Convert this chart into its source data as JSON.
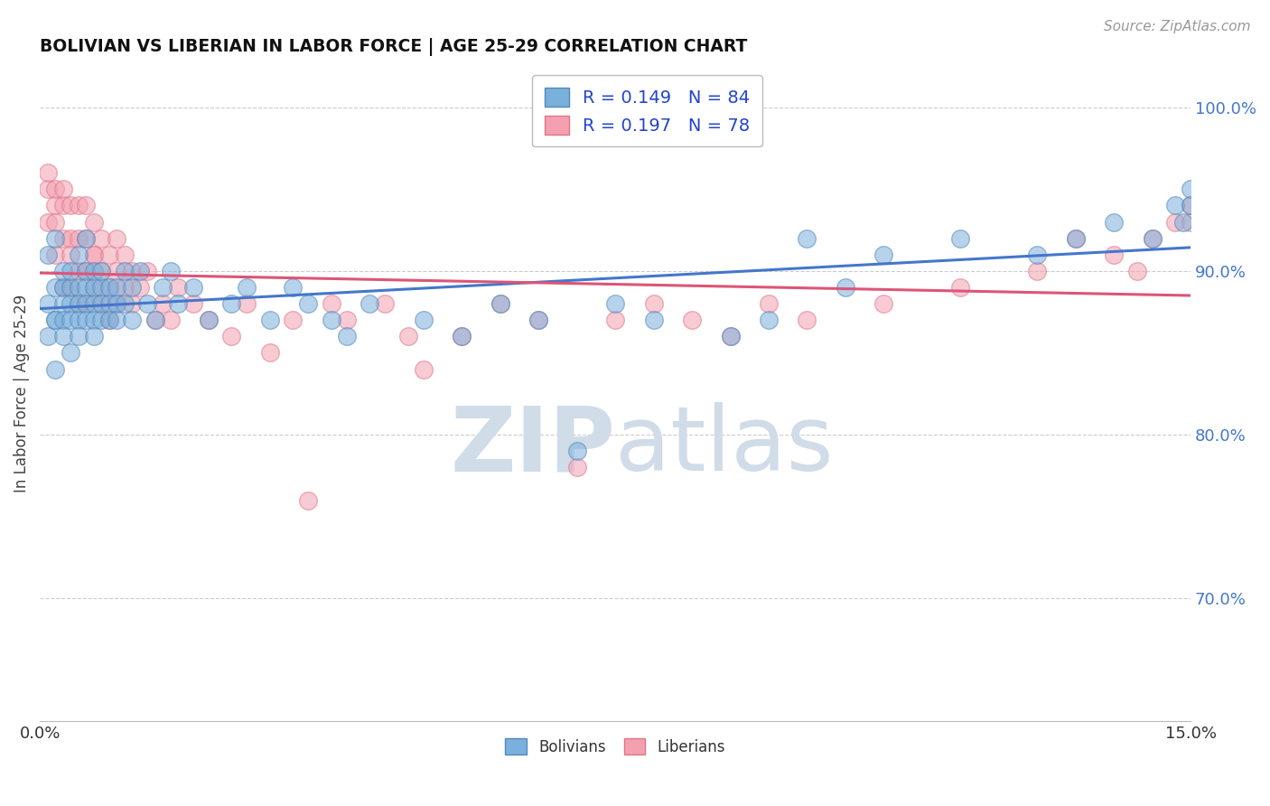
{
  "title": "BOLIVIAN VS LIBERIAN IN LABOR FORCE | AGE 25-29 CORRELATION CHART",
  "source_text": "Source: ZipAtlas.com",
  "ylabel_left": "In Labor Force | Age 25-29",
  "x_min": 0.0,
  "x_max": 0.15,
  "y_min": 0.625,
  "y_max": 1.025,
  "x_tick_labels": [
    "0.0%",
    "15.0%"
  ],
  "y_ticks_right": [
    0.7,
    0.8,
    0.9,
    1.0
  ],
  "y_tick_labels_right": [
    "70.0%",
    "80.0%",
    "90.0%",
    "100.0%"
  ],
  "bolivian_color": "#7ab0dc",
  "liberian_color": "#f4a0b0",
  "bolivian_edge": "#5588bb",
  "liberian_edge": "#dd7788",
  "trend_blue": "#4477cc",
  "trend_pink": "#dd5577",
  "R_bolivian": 0.149,
  "N_bolivian": 84,
  "R_liberian": 0.197,
  "N_liberian": 78,
  "legend_label_bolivian": "Bolivians",
  "legend_label_liberian": "Liberians",
  "background_color": "#ffffff",
  "watermark_color": "#d0dce8",
  "grid_color": "#cccccc",
  "bolivian_x": [
    0.001,
    0.001,
    0.001,
    0.002,
    0.002,
    0.002,
    0.002,
    0.002,
    0.003,
    0.003,
    0.003,
    0.003,
    0.003,
    0.004,
    0.004,
    0.004,
    0.004,
    0.004,
    0.005,
    0.005,
    0.005,
    0.005,
    0.005,
    0.006,
    0.006,
    0.006,
    0.006,
    0.006,
    0.007,
    0.007,
    0.007,
    0.007,
    0.007,
    0.008,
    0.008,
    0.008,
    0.008,
    0.009,
    0.009,
    0.009,
    0.01,
    0.01,
    0.01,
    0.011,
    0.011,
    0.012,
    0.012,
    0.013,
    0.014,
    0.015,
    0.016,
    0.017,
    0.018,
    0.02,
    0.022,
    0.025,
    0.027,
    0.03,
    0.033,
    0.035,
    0.038,
    0.04,
    0.043,
    0.05,
    0.055,
    0.06,
    0.065,
    0.07,
    0.075,
    0.08,
    0.09,
    0.095,
    0.1,
    0.105,
    0.11,
    0.12,
    0.13,
    0.135,
    0.14,
    0.145,
    0.148,
    0.149,
    0.15,
    0.15
  ],
  "bolivian_y": [
    0.88,
    0.86,
    0.91,
    0.87,
    0.89,
    0.84,
    0.92,
    0.87,
    0.89,
    0.88,
    0.87,
    0.9,
    0.86,
    0.89,
    0.88,
    0.87,
    0.9,
    0.85,
    0.89,
    0.88,
    0.87,
    0.86,
    0.91,
    0.9,
    0.89,
    0.88,
    0.87,
    0.92,
    0.89,
    0.88,
    0.87,
    0.86,
    0.9,
    0.89,
    0.88,
    0.87,
    0.9,
    0.89,
    0.88,
    0.87,
    0.89,
    0.88,
    0.87,
    0.9,
    0.88,
    0.89,
    0.87,
    0.9,
    0.88,
    0.87,
    0.89,
    0.9,
    0.88,
    0.89,
    0.87,
    0.88,
    0.89,
    0.87,
    0.89,
    0.88,
    0.87,
    0.86,
    0.88,
    0.87,
    0.86,
    0.88,
    0.87,
    0.79,
    0.88,
    0.87,
    0.86,
    0.87,
    0.92,
    0.89,
    0.91,
    0.92,
    0.91,
    0.92,
    0.93,
    0.92,
    0.94,
    0.93,
    0.94,
    0.95
  ],
  "liberian_x": [
    0.001,
    0.001,
    0.001,
    0.002,
    0.002,
    0.002,
    0.002,
    0.003,
    0.003,
    0.003,
    0.003,
    0.004,
    0.004,
    0.004,
    0.004,
    0.005,
    0.005,
    0.005,
    0.005,
    0.006,
    0.006,
    0.006,
    0.006,
    0.007,
    0.007,
    0.007,
    0.007,
    0.008,
    0.008,
    0.008,
    0.009,
    0.009,
    0.009,
    0.01,
    0.01,
    0.01,
    0.011,
    0.011,
    0.012,
    0.012,
    0.013,
    0.014,
    0.015,
    0.016,
    0.017,
    0.018,
    0.02,
    0.022,
    0.025,
    0.027,
    0.03,
    0.033,
    0.035,
    0.038,
    0.04,
    0.045,
    0.048,
    0.05,
    0.055,
    0.06,
    0.065,
    0.07,
    0.075,
    0.08,
    0.085,
    0.09,
    0.095,
    0.1,
    0.11,
    0.12,
    0.13,
    0.135,
    0.14,
    0.143,
    0.145,
    0.148,
    0.15,
    0.15
  ],
  "liberian_y": [
    0.95,
    0.93,
    0.96,
    0.94,
    0.91,
    0.95,
    0.93,
    0.94,
    0.92,
    0.95,
    0.89,
    0.94,
    0.92,
    0.91,
    0.89,
    0.94,
    0.92,
    0.9,
    0.88,
    0.94,
    0.92,
    0.9,
    0.88,
    0.93,
    0.91,
    0.89,
    0.91,
    0.92,
    0.9,
    0.88,
    0.91,
    0.89,
    0.87,
    0.92,
    0.9,
    0.88,
    0.91,
    0.89,
    0.9,
    0.88,
    0.89,
    0.9,
    0.87,
    0.88,
    0.87,
    0.89,
    0.88,
    0.87,
    0.86,
    0.88,
    0.85,
    0.87,
    0.76,
    0.88,
    0.87,
    0.88,
    0.86,
    0.84,
    0.86,
    0.88,
    0.87,
    0.78,
    0.87,
    0.88,
    0.87,
    0.86,
    0.88,
    0.87,
    0.88,
    0.89,
    0.9,
    0.92,
    0.91,
    0.9,
    0.92,
    0.93,
    0.93,
    0.94
  ]
}
